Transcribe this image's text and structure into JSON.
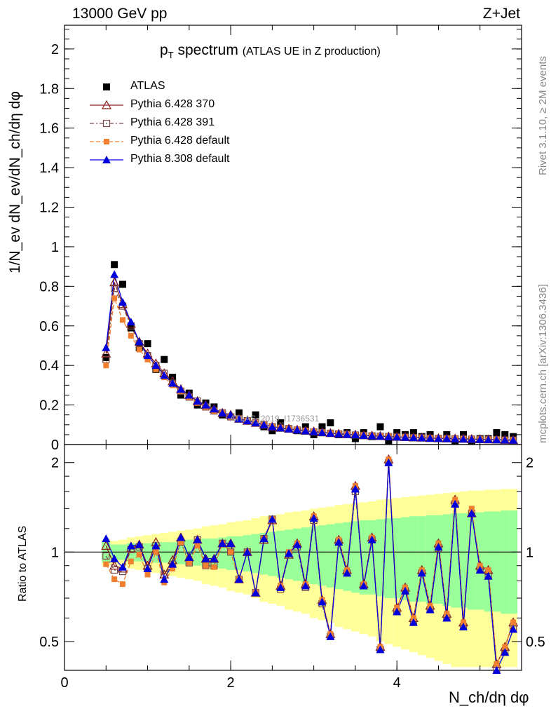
{
  "header": {
    "left": "13000 GeV pp",
    "right": "Z+Jet"
  },
  "side": {
    "rivet": "Rivet 3.1.10, ≥ 2M events",
    "mcplots": "mcplots.cern.ch [arXiv:1306.3436]"
  },
  "watermark": "ATLAS_2019_I1736531",
  "chart_data": {
    "type": "scatter",
    "title_main": "p",
    "title_sub": "T",
    "title_rest": " spectrum",
    "title_small": "(ATLAS UE in Z production)",
    "ylabel": "1/N_ev dN_ev/dN_ch/dη dφ",
    "ratio_ylabel": "Ratio to ATLAS",
    "xlabel": "N_ch/dη dφ",
    "xlim": [
      0,
      5.5
    ],
    "ylim_main": [
      0,
      2.12
    ],
    "ylim_ratio": [
      0.4,
      2.3
    ],
    "x_ticks": [
      "0",
      "2",
      "4"
    ],
    "y_ticks_main": [
      "0",
      "0.2",
      "0.4",
      "0.6",
      "0.8",
      "1",
      "1.2",
      "1.4",
      "1.6",
      "1.8",
      "2"
    ],
    "y_ticks_ratio": [
      "0.5",
      "1",
      "2"
    ],
    "legend_position": "top-left",
    "x": [
      0.5,
      0.6,
      0.7,
      0.8,
      0.9,
      1.0,
      1.1,
      1.2,
      1.3,
      1.4,
      1.5,
      1.6,
      1.7,
      1.8,
      1.9,
      2.0,
      2.1,
      2.2,
      2.3,
      2.4,
      2.5,
      2.6,
      2.7,
      2.8,
      2.9,
      3.0,
      3.1,
      3.2,
      3.3,
      3.4,
      3.5,
      3.6,
      3.7,
      3.8,
      3.9,
      4.0,
      4.1,
      4.2,
      4.3,
      4.4,
      4.5,
      4.6,
      4.7,
      4.8,
      4.9,
      5.0,
      5.1,
      5.2,
      5.3,
      5.4
    ],
    "series": [
      {
        "name": "ATLAS",
        "color": "#000000",
        "marker": "filled-square",
        "values": [
          0.44,
          0.91,
          0.81,
          0.59,
          0.49,
          0.51,
          0.38,
          0.43,
          0.34,
          0.25,
          0.26,
          0.2,
          0.21,
          0.19,
          0.15,
          0.14,
          0.16,
          0.12,
          0.15,
          0.09,
          0.07,
          0.11,
          0.08,
          0.07,
          0.09,
          0.05,
          0.09,
          0.11,
          0.05,
          0.06,
          0.03,
          0.06,
          0.04,
          0.09,
          0.02,
          0.06,
          0.05,
          0.06,
          0.04,
          0.05,
          0.03,
          0.05,
          0.02,
          0.05,
          0.02,
          0.03,
          0.03,
          0.06,
          0.05,
          0.04
        ]
      },
      {
        "name": "Pythia 6.428 370",
        "color": "#8b1a1a",
        "marker": "open-triangle",
        "values": [
          0.46,
          0.82,
          0.71,
          0.61,
          0.52,
          0.46,
          0.41,
          0.36,
          0.32,
          0.28,
          0.25,
          0.22,
          0.2,
          0.18,
          0.16,
          0.15,
          0.13,
          0.12,
          0.11,
          0.1,
          0.09,
          0.085,
          0.08,
          0.075,
          0.07,
          0.066,
          0.062,
          0.058,
          0.055,
          0.052,
          0.05,
          0.047,
          0.045,
          0.043,
          0.041,
          0.039,
          0.038,
          0.036,
          0.035,
          0.033,
          0.032,
          0.031,
          0.03,
          0.029,
          0.028,
          0.027,
          0.026,
          0.025,
          0.024,
          0.023
        ]
      },
      {
        "name": "Pythia 6.428 391",
        "color": "#7a4a4a",
        "marker": "open-square",
        "values": [
          0.43,
          0.79,
          0.7,
          0.6,
          0.51,
          0.45,
          0.4,
          0.36,
          0.31,
          0.27,
          0.24,
          0.22,
          0.19,
          0.17,
          0.16,
          0.14,
          0.13,
          0.12,
          0.11,
          0.1,
          0.09,
          0.083,
          0.078,
          0.073,
          0.068,
          0.064,
          0.06,
          0.057,
          0.054,
          0.051,
          0.048,
          0.046,
          0.044,
          0.042,
          0.04,
          0.038,
          0.037,
          0.035,
          0.034,
          0.032,
          0.031,
          0.03,
          0.029,
          0.028,
          0.027,
          0.026,
          0.025,
          0.024,
          0.023,
          0.022
        ]
      },
      {
        "name": "Pythia 6.428 default",
        "color": "#f08030",
        "marker": "filled-square-small",
        "values": [
          0.4,
          0.74,
          0.63,
          0.55,
          0.48,
          0.43,
          0.38,
          0.34,
          0.3,
          0.27,
          0.24,
          0.21,
          0.19,
          0.17,
          0.16,
          0.14,
          0.13,
          0.12,
          0.11,
          0.1,
          0.09,
          0.085,
          0.08,
          0.075,
          0.07,
          0.066,
          0.062,
          0.058,
          0.055,
          0.052,
          0.05,
          0.047,
          0.045,
          0.043,
          0.041,
          0.039,
          0.038,
          0.036,
          0.035,
          0.033,
          0.032,
          0.031,
          0.03,
          0.029,
          0.028,
          0.027,
          0.026,
          0.025,
          0.024,
          0.023
        ]
      },
      {
        "name": "Pythia 8.308 default",
        "color": "#0000dd",
        "marker": "filled-triangle",
        "values": [
          0.49,
          0.86,
          0.72,
          0.62,
          0.52,
          0.45,
          0.4,
          0.35,
          0.31,
          0.28,
          0.25,
          0.22,
          0.2,
          0.18,
          0.16,
          0.15,
          0.13,
          0.12,
          0.11,
          0.1,
          0.09,
          0.084,
          0.079,
          0.074,
          0.069,
          0.065,
          0.061,
          0.057,
          0.054,
          0.051,
          0.049,
          0.046,
          0.044,
          0.042,
          0.04,
          0.038,
          0.037,
          0.035,
          0.034,
          0.032,
          0.031,
          0.03,
          0.029,
          0.028,
          0.027,
          0.026,
          0.025,
          0.024,
          0.023,
          0.022
        ]
      }
    ],
    "ratio_series": [
      {
        "name": "Pythia 6.428 370",
        "values": [
          1.05,
          0.9,
          0.88,
          1.03,
          1.06,
          0.9,
          1.08,
          0.84,
          0.94,
          1.12,
          0.96,
          1.1,
          0.95,
          0.95,
          1.07,
          1.07,
          0.81,
          1.0,
          0.73,
          1.1,
          1.28,
          0.77,
          0.98,
          1.07,
          0.78,
          1.32,
          0.69,
          0.53,
          1.1,
          0.87,
          1.67,
          0.78,
          1.12,
          0.48,
          2.05,
          0.65,
          0.76,
          0.6,
          0.87,
          0.66,
          1.07,
          0.62,
          1.5,
          0.58,
          1.35,
          0.9,
          0.87,
          0.42,
          0.48,
          0.58
        ]
      },
      {
        "name": "Pythia 6.428 391",
        "values": [
          0.97,
          0.87,
          0.86,
          1.02,
          1.04,
          0.88,
          1.05,
          0.84,
          0.91,
          1.08,
          0.92,
          1.1,
          0.9,
          0.9,
          1.07,
          1.0,
          0.81,
          1.0,
          0.73,
          1.11,
          1.29,
          0.75,
          0.98,
          1.04,
          0.76,
          1.28,
          0.67,
          0.52,
          1.08,
          0.85,
          1.6,
          0.77,
          1.1,
          0.47,
          2.0,
          0.63,
          0.74,
          0.58,
          0.85,
          0.64,
          1.03,
          0.6,
          1.45,
          0.56,
          1.35,
          0.87,
          0.83,
          0.4,
          0.46,
          0.55
        ]
      },
      {
        "name": "Pythia 6.428 default",
        "values": [
          0.91,
          0.81,
          0.78,
          0.93,
          0.98,
          0.84,
          1.0,
          0.79,
          0.88,
          1.08,
          0.92,
          1.05,
          0.9,
          0.89,
          1.07,
          1.0,
          0.81,
          1.0,
          0.73,
          1.11,
          1.29,
          0.77,
          1.0,
          1.07,
          0.78,
          1.32,
          0.69,
          0.53,
          1.1,
          0.87,
          1.67,
          0.78,
          1.12,
          0.48,
          2.05,
          0.65,
          0.76,
          0.6,
          0.87,
          0.66,
          1.07,
          0.62,
          1.5,
          0.58,
          1.4,
          0.9,
          0.87,
          0.42,
          0.48,
          0.58
        ]
      },
      {
        "name": "Pythia 8.308 default",
        "values": [
          1.11,
          0.95,
          0.89,
          1.05,
          1.06,
          0.88,
          1.05,
          0.81,
          0.91,
          1.12,
          0.96,
          1.1,
          0.95,
          0.95,
          1.07,
          1.07,
          0.81,
          1.0,
          0.73,
          1.11,
          1.29,
          0.76,
          0.99,
          1.06,
          0.77,
          1.3,
          0.68,
          0.52,
          1.08,
          0.85,
          1.63,
          0.77,
          1.1,
          0.47,
          2.0,
          0.63,
          0.74,
          0.58,
          0.85,
          0.64,
          1.04,
          0.6,
          1.45,
          0.56,
          1.35,
          0.87,
          0.83,
          0.4,
          0.46,
          0.55
        ]
      }
    ],
    "band_green": [
      0.08,
      0.06,
      0.06,
      0.07,
      0.07,
      0.07,
      0.08,
      0.08,
      0.08,
      0.09,
      0.1,
      0.1,
      0.11,
      0.11,
      0.12,
      0.13,
      0.13,
      0.14,
      0.15,
      0.16,
      0.17,
      0.18,
      0.19,
      0.2,
      0.21,
      0.22,
      0.23,
      0.24,
      0.25,
      0.26,
      0.27,
      0.28,
      0.28,
      0.29,
      0.3,
      0.3,
      0.31,
      0.32,
      0.32,
      0.33,
      0.33,
      0.34,
      0.35,
      0.35,
      0.36,
      0.36,
      0.37,
      0.37,
      0.38,
      0.38
    ],
    "band_yellow": [
      0.1,
      0.09,
      0.1,
      0.12,
      0.13,
      0.14,
      0.15,
      0.16,
      0.17,
      0.18,
      0.19,
      0.2,
      0.22,
      0.23,
      0.24,
      0.26,
      0.27,
      0.28,
      0.3,
      0.32,
      0.33,
      0.34,
      0.36,
      0.37,
      0.38,
      0.4,
      0.41,
      0.42,
      0.44,
      0.45,
      0.46,
      0.47,
      0.48,
      0.5,
      0.51,
      0.52,
      0.53,
      0.54,
      0.55,
      0.56,
      0.57,
      0.58,
      0.59,
      0.6,
      0.61,
      0.61,
      0.62,
      0.62,
      0.63,
      0.63
    ]
  }
}
